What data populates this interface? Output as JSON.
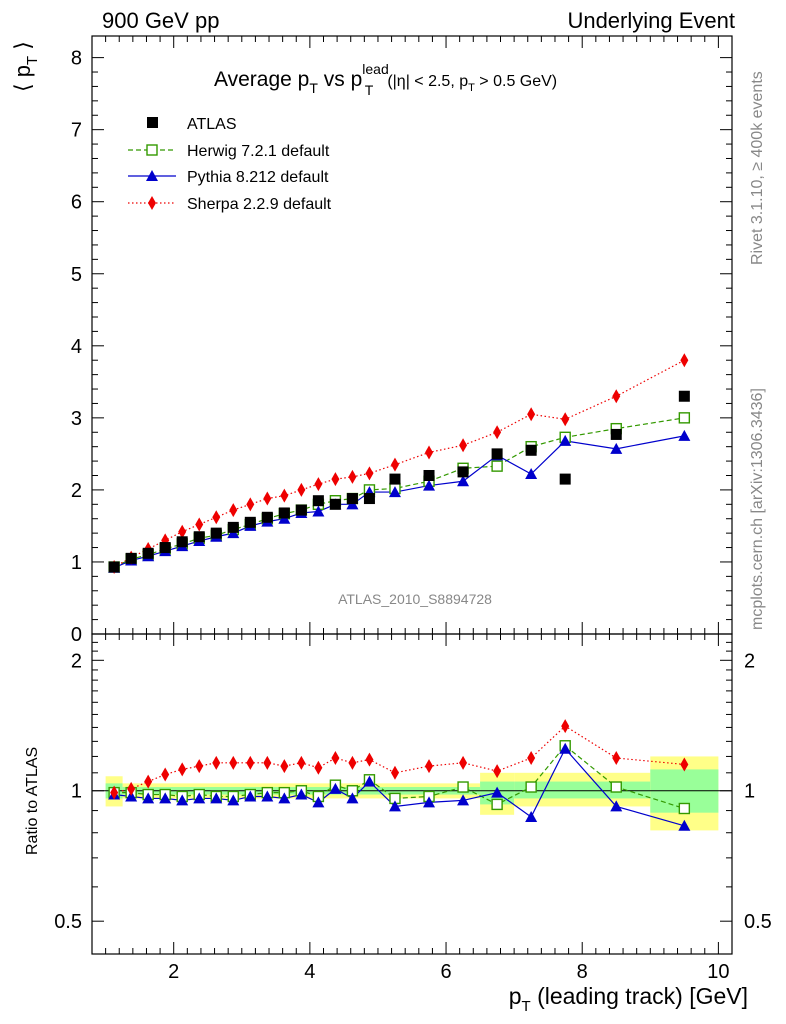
{
  "header": {
    "left": "900 GeV pp",
    "right": "Underlying Event"
  },
  "side": {
    "rivet": "Rivet 3.1.10, ≥ 400k events",
    "mcplots": "mcplots.cern.ch [arXiv:1306.3436]"
  },
  "analysis_id": "ATLAS_2010_S8894728",
  "main_title": {
    "pre": "Average p",
    "sub1": "T",
    "mid": " vs p",
    "sup": "lead",
    "sub2": "T",
    "cut_a": "(|η| < 2.5, p",
    "cut_sub": "T",
    "cut_b": " > 0.5 GeV)"
  },
  "ylabel_top": {
    "text": "⟨ p",
    "sub": "T",
    "close": " ⟩"
  },
  "ylabel_bottom": "Ratio to ATLAS",
  "xlabel": {
    "p": "p",
    "sub": "T",
    "rest": " (leading track) [GeV]"
  },
  "legend": [
    "ATLAS",
    "Herwig 7.2.1 default",
    "Pythia 8.212 default",
    "Sherpa 2.2.9 default"
  ],
  "colors": {
    "atlas": "#000000",
    "herwig": "#339900",
    "pythia": "#0000cc",
    "sherpa": "#ee0000",
    "band_outer": "#ffff88",
    "band_inner": "#99ff99"
  },
  "chart_data": {
    "type": "scatter",
    "title": "Average pT vs pT lead (|eta| < 2.5, pT > 0.5 GeV)",
    "xlabel": "pT (leading track) [GeV]",
    "ylabel_top": "<pT>",
    "ylabel_bottom": "Ratio to ATLAS",
    "xlim": [
      0.8,
      10.2
    ],
    "ylim_top": [
      0,
      8.3
    ],
    "ylim_bottom": [
      0.42,
      2.3
    ],
    "x_ticks": [
      2,
      4,
      6,
      8,
      10
    ],
    "y_ticks_top": [
      0,
      1,
      2,
      3,
      4,
      5,
      6,
      7,
      8
    ],
    "y_ticks_bottom": [
      0.5,
      1,
      2
    ],
    "x": [
      1.125,
      1.375,
      1.625,
      1.875,
      2.125,
      2.375,
      2.625,
      2.875,
      3.125,
      3.375,
      3.625,
      3.875,
      4.125,
      4.375,
      4.625,
      4.875,
      5.25,
      5.75,
      6.25,
      6.75,
      7.25,
      7.75,
      8.5,
      9.5
    ],
    "series": [
      {
        "name": "ATLAS",
        "values": [
          0.93,
          1.05,
          1.12,
          1.2,
          1.28,
          1.35,
          1.4,
          1.48,
          1.55,
          1.62,
          1.68,
          1.72,
          1.85,
          1.8,
          1.88,
          1.88,
          2.15,
          2.2,
          2.25,
          2.5,
          2.55,
          2.15,
          2.77,
          3.3
        ]
      },
      {
        "name": "Herwig 7.2.1 default",
        "values": [
          0.93,
          1.04,
          1.1,
          1.18,
          1.25,
          1.33,
          1.37,
          1.45,
          1.52,
          1.6,
          1.67,
          1.72,
          1.8,
          1.85,
          1.88,
          2.0,
          2.02,
          2.12,
          2.3,
          2.33,
          2.6,
          2.73,
          2.85,
          3.0
        ]
      },
      {
        "name": "Pythia 8.212 default",
        "values": [
          0.92,
          1.02,
          1.08,
          1.15,
          1.22,
          1.29,
          1.35,
          1.4,
          1.5,
          1.56,
          1.6,
          1.68,
          1.7,
          1.8,
          1.8,
          1.97,
          1.97,
          2.06,
          2.12,
          2.48,
          2.22,
          2.68,
          2.57,
          2.75
        ]
      },
      {
        "name": "Sherpa 2.2.9 default",
        "values": [
          0.93,
          1.06,
          1.18,
          1.3,
          1.42,
          1.52,
          1.62,
          1.72,
          1.8,
          1.88,
          1.92,
          2.0,
          2.08,
          2.15,
          2.18,
          2.23,
          2.35,
          2.52,
          2.62,
          2.8,
          3.05,
          2.98,
          3.3,
          3.8
        ]
      }
    ],
    "ratio_series": [
      {
        "name": "Herwig 7.2.1 default",
        "values": [
          0.99,
          0.99,
          0.98,
          0.98,
          0.97,
          0.98,
          0.97,
          0.97,
          0.98,
          0.99,
          0.99,
          1.0,
          0.97,
          1.03,
          1.0,
          1.06,
          0.96,
          0.97,
          1.02,
          0.93,
          1.02,
          1.27,
          1.02,
          0.91
        ]
      },
      {
        "name": "Pythia 8.212 default",
        "values": [
          0.98,
          0.97,
          0.96,
          0.96,
          0.95,
          0.96,
          0.96,
          0.95,
          0.97,
          0.97,
          0.96,
          0.98,
          0.94,
          1.01,
          0.96,
          1.05,
          0.92,
          0.94,
          0.95,
          0.99,
          0.87,
          1.25,
          0.92,
          0.83
        ]
      },
      {
        "name": "Sherpa 2.2.9 default",
        "values": [
          0.99,
          1.01,
          1.05,
          1.09,
          1.12,
          1.14,
          1.16,
          1.16,
          1.16,
          1.16,
          1.14,
          1.16,
          1.13,
          1.19,
          1.16,
          1.18,
          1.1,
          1.14,
          1.16,
          1.11,
          1.19,
          1.41,
          1.19,
          1.15
        ]
      }
    ],
    "uncertainty_bands": [
      {
        "x": [
          1.0,
          1.25
        ],
        "outer": [
          0.92,
          1.08
        ],
        "inner": [
          0.96,
          1.04
        ]
      },
      {
        "x": [
          1.25,
          6.5
        ],
        "outer": [
          0.96,
          1.04
        ],
        "inner": [
          0.98,
          1.02
        ]
      },
      {
        "x": [
          6.5,
          7.0
        ],
        "outer": [
          0.88,
          1.1
        ],
        "inner": [
          0.93,
          1.05
        ]
      },
      {
        "x": [
          7.0,
          9.0
        ],
        "outer": [
          0.92,
          1.1
        ],
        "inner": [
          0.96,
          1.05
        ]
      },
      {
        "x": [
          9.0,
          10.0
        ],
        "outer": [
          0.81,
          1.2
        ],
        "inner": [
          0.89,
          1.12
        ]
      }
    ]
  }
}
